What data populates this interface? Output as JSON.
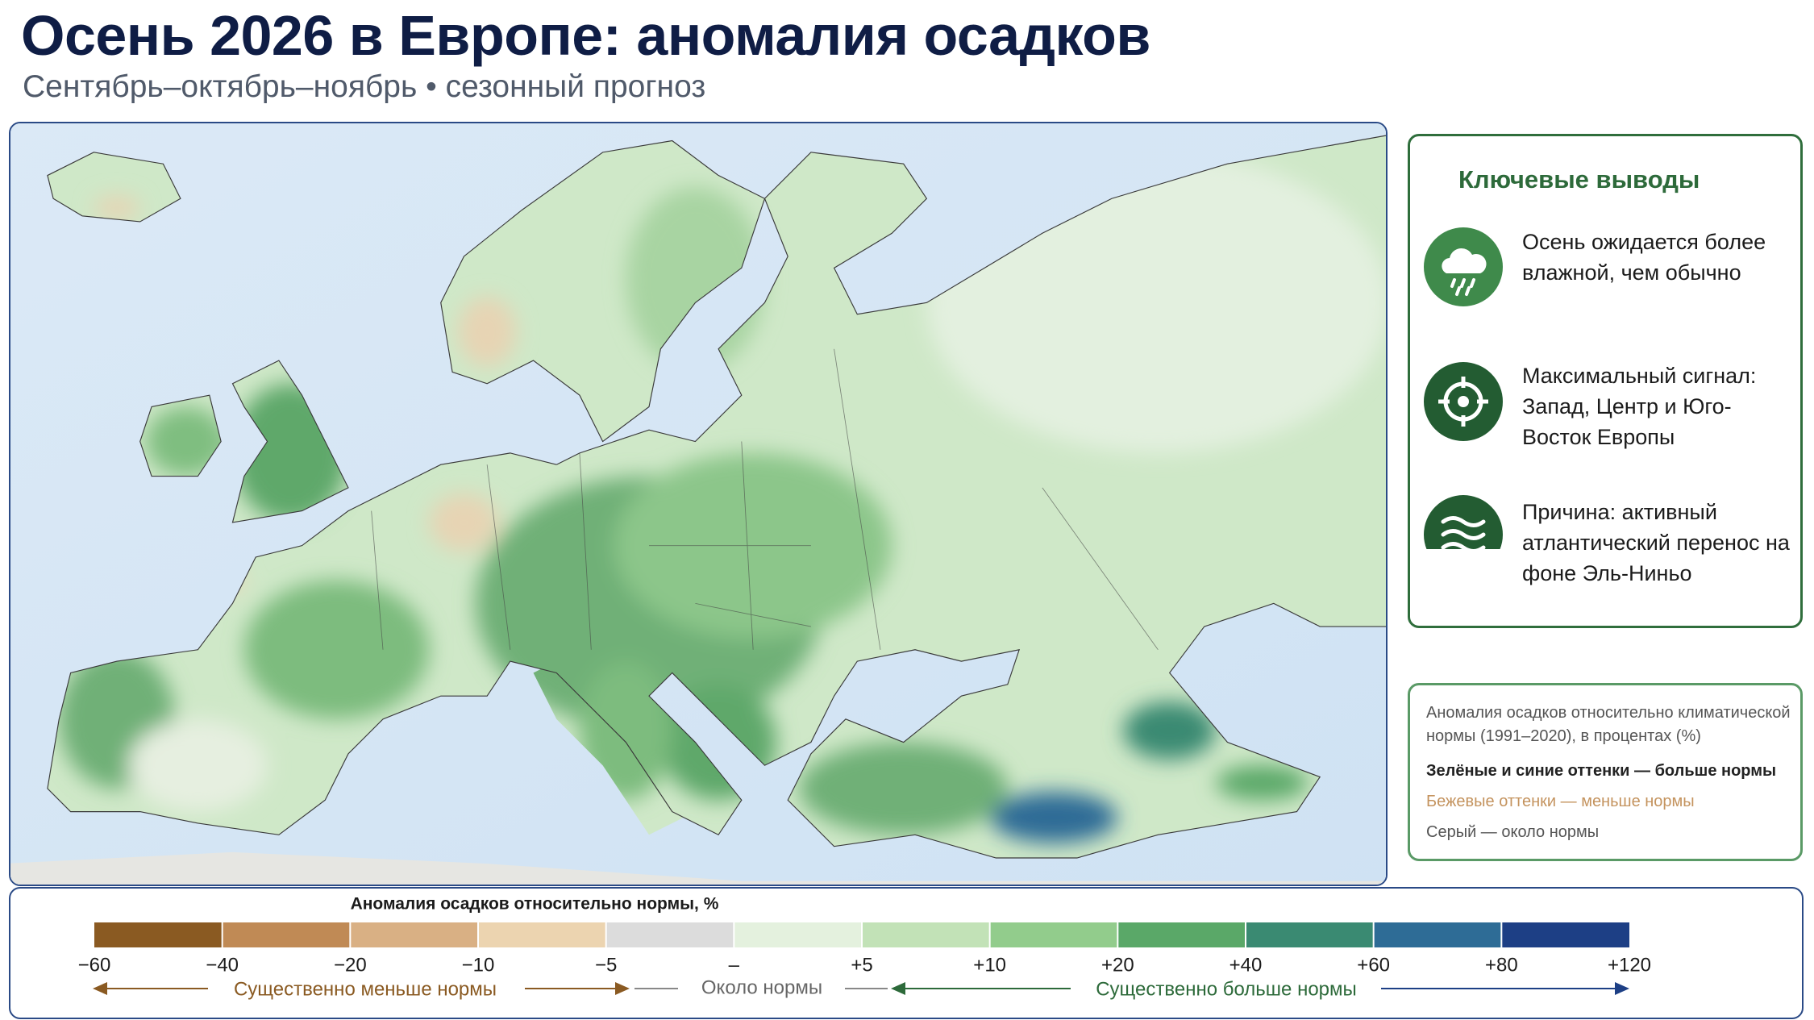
{
  "header": {
    "title": "Осень 2026 в Европе: аномалия осадков",
    "subtitle": "Сентябрь–октябрь–ноябрь • сезонный прогноз"
  },
  "takeaways": {
    "title": "Ключевые выводы",
    "items": [
      {
        "text": "Осень ожидается более влажной, чем обычно"
      },
      {
        "text": "Максимальный сигнал: Запад, Центр и Юго-Восток Европы"
      },
      {
        "text": "Причина: активный атлантический перенос на фоне Эль-Ниньо"
      }
    ]
  },
  "note": {
    "description": "Аномалия осадков относительно климатической нормы (1991–2020), в процентах (%)",
    "green": "Зелёные и синие оттенки — больше нормы",
    "beige": "Бежевые оттенки — меньше нормы",
    "gray": "Серый — около нормы"
  },
  "legend": {
    "title": "Аномалия осадков относительно нормы, %",
    "ticks": [
      {
        "value": -60,
        "label": "−60"
      },
      {
        "value": -40,
        "label": "−40"
      },
      {
        "value": -20,
        "label": "−20"
      },
      {
        "value": -10,
        "label": "−10"
      },
      {
        "value": -5,
        "label": "−5"
      },
      {
        "value": 0,
        "label": "–"
      },
      {
        "value": 5,
        "label": "+5"
      },
      {
        "value": 10,
        "label": "+10"
      },
      {
        "value": 20,
        "label": "+20"
      },
      {
        "value": 40,
        "label": "+40"
      },
      {
        "value": 60,
        "label": "+60"
      },
      {
        "value": 80,
        "label": "+80"
      },
      {
        "value": 120,
        "label": "+120"
      }
    ],
    "colors": [
      "#8a5a22",
      "#c08a55",
      "#d9b084",
      "#ecd4b0",
      "#dcdcdc",
      "#e4f1de",
      "#c2e2b7",
      "#92cc8c",
      "#5aa868",
      "#3a8a72",
      "#2e6c96",
      "#1d3f85"
    ],
    "below": "Существенно меньше нормы",
    "near": "Около нормы",
    "above": "Существенно больше нормы"
  }
}
